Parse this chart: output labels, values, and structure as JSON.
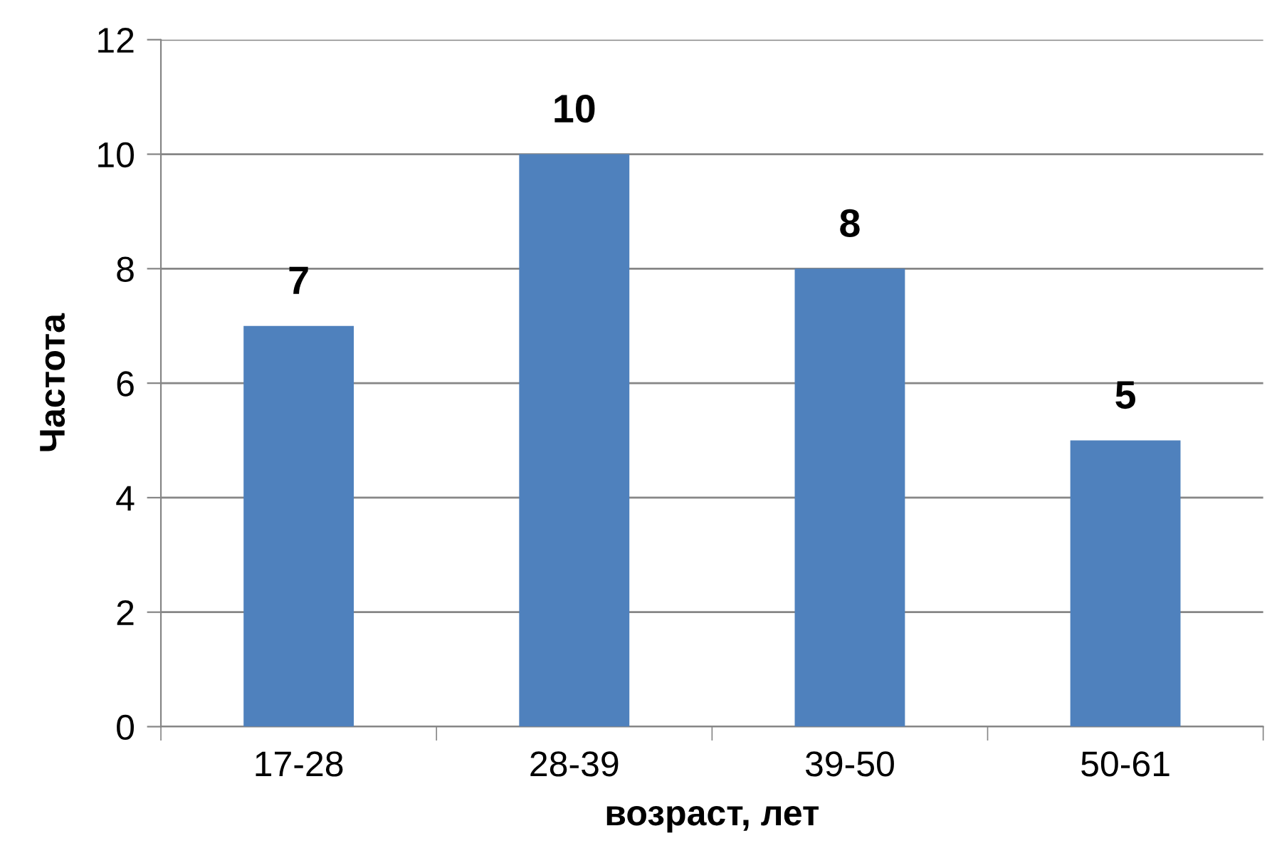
{
  "chart_data": {
    "type": "bar",
    "xlabel": "возраст, лет",
    "ylabel": "Частота",
    "categories": [
      "17-28",
      "28-39",
      "39-50",
      "50-61"
    ],
    "values": [
      7,
      10,
      8,
      5
    ],
    "color": "#4f81bd",
    "ylim": [
      0,
      12
    ],
    "yticks": [
      0,
      2,
      4,
      6,
      8,
      10,
      12
    ],
    "grid": "y",
    "data_labels": true
  }
}
